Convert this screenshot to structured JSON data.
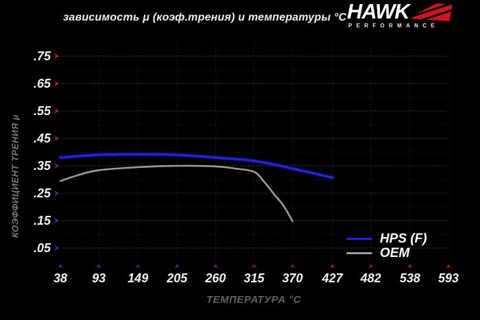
{
  "title": "зависимость μ (коэф.трения) и температуры °C",
  "logo": {
    "brand": "HAWK",
    "subtitle": "PERFORMANCE"
  },
  "colors": {
    "background": "#000000",
    "axis_red": "#ce1428",
    "axis_blue": "#2b34b5",
    "grid_major": "#3c3c3c",
    "grid_minor": "#242424",
    "tick_text": "#f4f4f4",
    "axis_title_text": "#6e6e6e"
  },
  "chart_data": {
    "type": "line",
    "title": "зависимость μ (коэф.трения) и температуры °C",
    "xlabel": "ТЕМПЕРАТУРА °C",
    "ylabel": "КОЭФФИЦИЕНТ ТРЕНИЯ μ",
    "xlim": [
      38,
      593
    ],
    "ylim": [
      0,
      0.8
    ],
    "grid": true,
    "legend_position": "lower right",
    "x_ticks": [
      38,
      93,
      149,
      205,
      260,
      315,
      370,
      427,
      482,
      538,
      593
    ],
    "y_ticks": [
      0.05,
      0.15,
      0.25,
      0.35,
      0.45,
      0.55,
      0.65,
      0.75
    ],
    "y_tick_labels": [
      ".05",
      ".15",
      ".25",
      ".35",
      ".45",
      ".55",
      ".65",
      ".75"
    ],
    "series": [
      {
        "name": "HPS (F)",
        "color": "#2323e8",
        "x": [
          38,
          93,
          149,
          205,
          260,
          315,
          370,
          427
        ],
        "y": [
          0.38,
          0.39,
          0.392,
          0.39,
          0.38,
          0.368,
          0.34,
          0.307
        ]
      },
      {
        "name": "OEM",
        "color": "#9c9c9c",
        "x": [
          38,
          66,
          93,
          149,
          205,
          260,
          288,
          315,
          330,
          344,
          357,
          370
        ],
        "y": [
          0.295,
          0.318,
          0.334,
          0.345,
          0.35,
          0.348,
          0.34,
          0.328,
          0.29,
          0.245,
          0.205,
          0.148
        ]
      }
    ]
  }
}
